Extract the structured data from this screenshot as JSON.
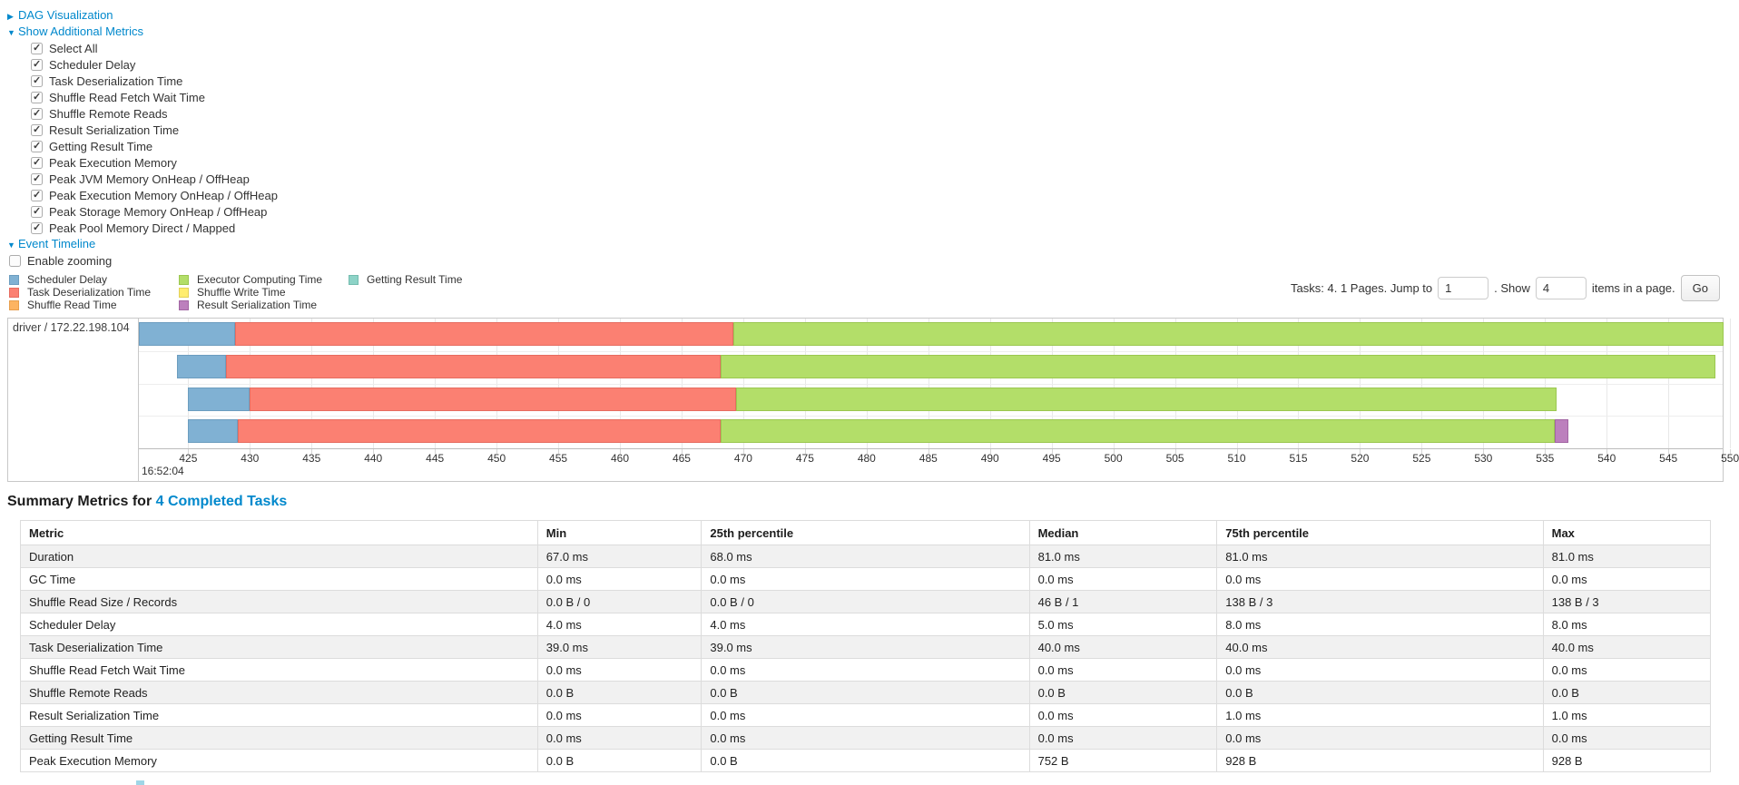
{
  "palette": {
    "scheduler-delay": {
      "label": "Scheduler Delay",
      "fill": "#80B1D3",
      "border": "#6C9DBF"
    },
    "task-deserialization": {
      "label": "Task Deserialization Time",
      "fill": "#FB8072",
      "border": "#E66C60"
    },
    "shuffle-read": {
      "label": "Shuffle Read Time",
      "fill": "#FDB462",
      "border": "#E89F4E"
    },
    "executor-computing": {
      "label": "Executor Computing Time",
      "fill": "#B3DE69",
      "border": "#9BC750"
    },
    "shuffle-write": {
      "label": "Shuffle Write Time",
      "fill": "#FFED6F",
      "border": "#E3D158"
    },
    "result-serialization": {
      "label": "Result Serialization Time",
      "fill": "#BC80BD",
      "border": "#A266A3"
    },
    "getting-result": {
      "label": "Getting Result Time",
      "fill": "#8DD3C7",
      "border": "#74BCAF"
    }
  },
  "controls": {
    "dag_arrow": "▶",
    "dag_label": "DAG Visualization",
    "metrics_arrow": "▼",
    "metrics_label": "Show Additional Metrics",
    "checkboxes": [
      {
        "label": "Select All",
        "checked": true
      },
      {
        "label": "Scheduler Delay",
        "checked": true
      },
      {
        "label": "Task Deserialization Time",
        "checked": true
      },
      {
        "label": "Shuffle Read Fetch Wait Time",
        "checked": true
      },
      {
        "label": "Shuffle Remote Reads",
        "checked": true
      },
      {
        "label": "Result Serialization Time",
        "checked": true
      },
      {
        "label": "Getting Result Time",
        "checked": true
      },
      {
        "label": "Peak Execution Memory",
        "checked": true
      },
      {
        "label": "Peak JVM Memory OnHeap / OffHeap",
        "checked": true
      },
      {
        "label": "Peak Execution Memory OnHeap / OffHeap",
        "checked": true
      },
      {
        "label": "Peak Storage Memory OnHeap / OffHeap",
        "checked": true
      },
      {
        "label": "Peak Pool Memory Direct / Mapped",
        "checked": true
      }
    ],
    "timeline_arrow": "▼",
    "timeline_label": "Event Timeline",
    "enable_zooming": {
      "label": "Enable zooming",
      "checked": false
    }
  },
  "legend": {
    "columns": [
      [
        "scheduler-delay",
        "task-deserialization",
        "shuffle-read"
      ],
      [
        "executor-computing",
        "shuffle-write",
        "result-serialization"
      ],
      [
        "getting-result"
      ]
    ]
  },
  "pagination": {
    "prefix": "Tasks: 4. 1 Pages. Jump to",
    "jump_value": "1",
    "mid": ". Show",
    "show_value": "4",
    "suffix": "items in a page.",
    "go_label": "Go"
  },
  "timeline": {
    "row_label": "driver / 172.22.198.104",
    "axis": {
      "t_min": 421.0,
      "t_max": 549.4,
      "tick_values": [
        425,
        430,
        435,
        440,
        445,
        450,
        455,
        460,
        465,
        470,
        475,
        480,
        485,
        490,
        495,
        500,
        505,
        510,
        515,
        520,
        525,
        530,
        535,
        540,
        545,
        550
      ],
      "major_label": "16:52:04"
    },
    "bars": [
      {
        "segments": [
          [
            "scheduler-delay",
            421.0,
            428.8
          ],
          [
            "task-deserialization",
            428.8,
            469.2
          ],
          [
            "executor-computing",
            469.2,
            549.5
          ]
        ]
      },
      {
        "segments": [
          [
            "scheduler-delay",
            424.1,
            428.1
          ],
          [
            "task-deserialization",
            428.1,
            468.2
          ],
          [
            "executor-computing",
            468.2,
            548.8
          ]
        ]
      },
      {
        "segments": [
          [
            "scheduler-delay",
            425.0,
            430.0
          ],
          [
            "task-deserialization",
            430.0,
            469.4
          ],
          [
            "executor-computing",
            469.4,
            535.9
          ]
        ]
      },
      {
        "segments": [
          [
            "scheduler-delay",
            425.0,
            429.0
          ],
          [
            "task-deserialization",
            429.0,
            468.2
          ],
          [
            "executor-computing",
            468.2,
            535.8
          ],
          [
            "result-serialization",
            535.8,
            536.9
          ]
        ]
      }
    ]
  },
  "summary": {
    "title_prefix": "Summary Metrics for ",
    "title_link": "4 Completed Tasks",
    "headers": [
      "Metric",
      "Min",
      "25th percentile",
      "Median",
      "75th percentile",
      "Max"
    ],
    "rows": [
      [
        "Duration",
        "67.0 ms",
        "68.0 ms",
        "81.0 ms",
        "81.0 ms",
        "81.0 ms"
      ],
      [
        "GC Time",
        "0.0 ms",
        "0.0 ms",
        "0.0 ms",
        "0.0 ms",
        "0.0 ms"
      ],
      [
        "Shuffle Read Size / Records",
        "0.0 B / 0",
        "0.0 B / 0",
        "46 B / 1",
        "138 B / 3",
        "138 B / 3"
      ],
      [
        "Scheduler Delay",
        "4.0 ms",
        "4.0 ms",
        "5.0 ms",
        "8.0 ms",
        "8.0 ms"
      ],
      [
        "Task Deserialization Time",
        "39.0 ms",
        "39.0 ms",
        "40.0 ms",
        "40.0 ms",
        "40.0 ms"
      ],
      [
        "Shuffle Read Fetch Wait Time",
        "0.0 ms",
        "0.0 ms",
        "0.0 ms",
        "0.0 ms",
        "0.0 ms"
      ],
      [
        "Shuffle Remote Reads",
        "0.0 B",
        "0.0 B",
        "0.0 B",
        "0.0 B",
        "0.0 B"
      ],
      [
        "Result Serialization Time",
        "0.0 ms",
        "0.0 ms",
        "0.0 ms",
        "1.0 ms",
        "1.0 ms"
      ],
      [
        "Getting Result Time",
        "0.0 ms",
        "0.0 ms",
        "0.0 ms",
        "0.0 ms",
        "0.0 ms"
      ],
      [
        "Peak Execution Memory",
        "0.0 B",
        "0.0 B",
        "752 B",
        "928 B",
        "928 B"
      ]
    ]
  }
}
